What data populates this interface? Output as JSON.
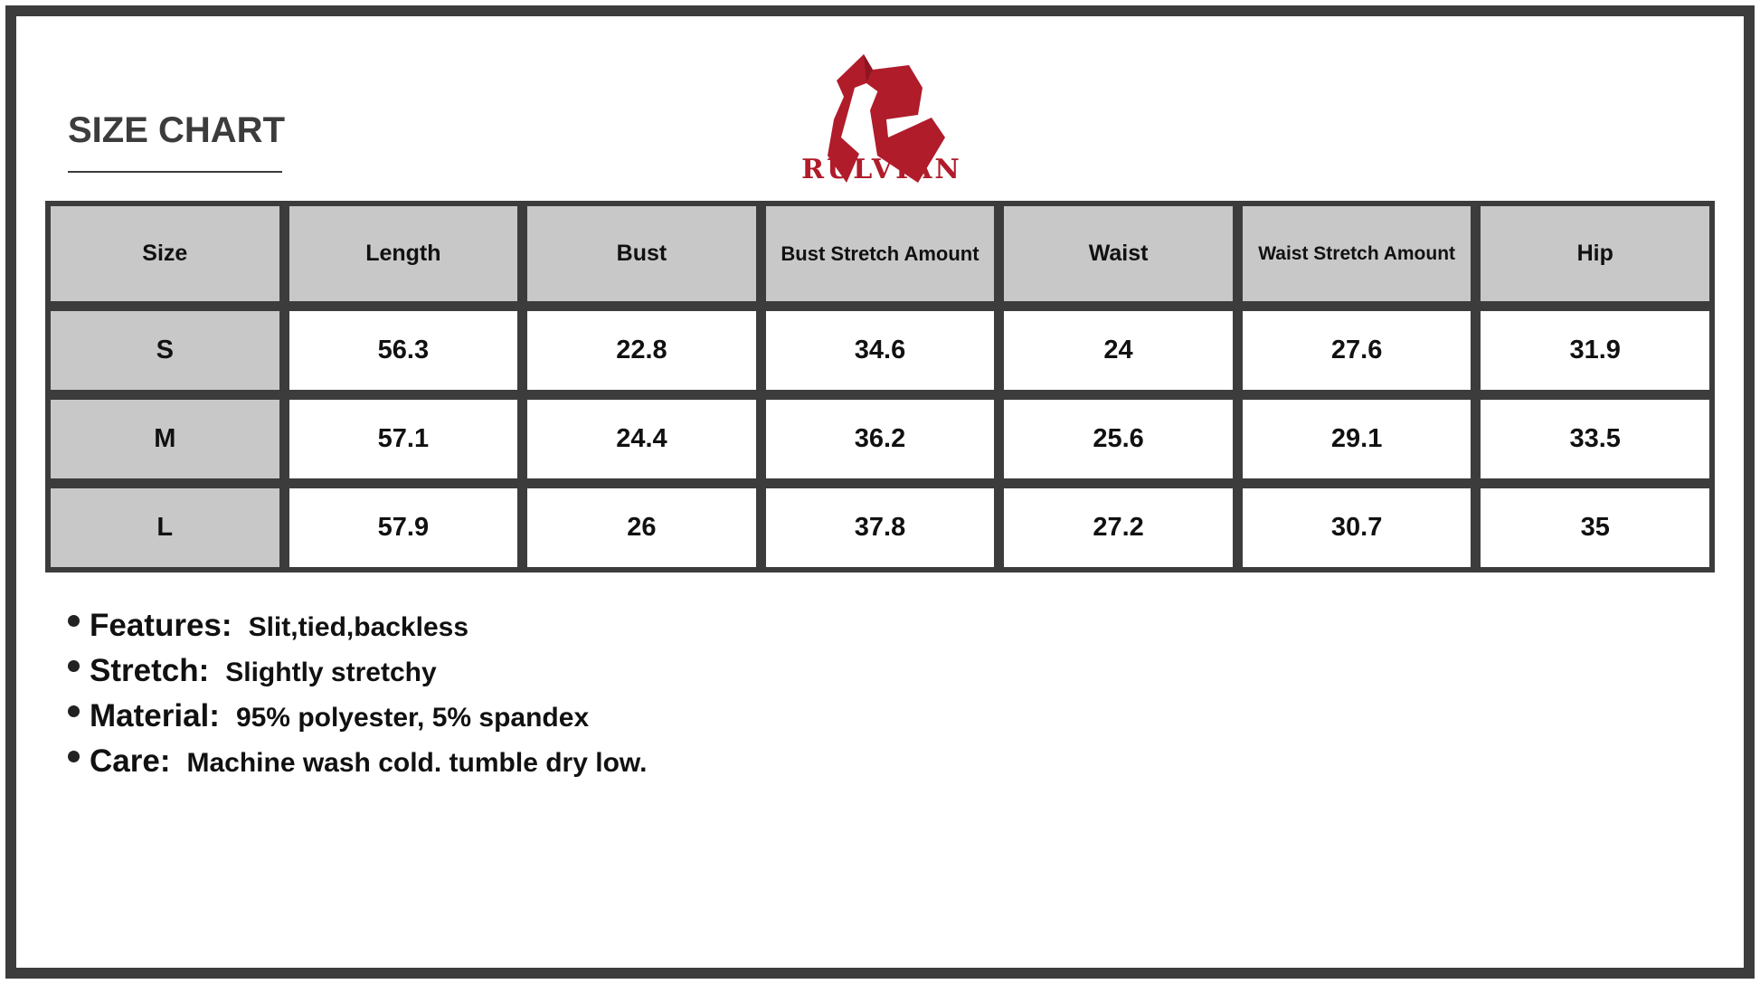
{
  "title": "SIZE CHART",
  "brand": {
    "name": "RULVIAN",
    "color": "#b01c2a"
  },
  "table": {
    "headers": [
      "Size",
      "Length",
      "Bust",
      "Bust Stretch Amount",
      "Waist",
      "Waist Stretch Amount",
      "Hip"
    ],
    "rows": [
      [
        "S",
        "56.3",
        "22.8",
        "34.6",
        "24",
        "27.6",
        "31.9"
      ],
      [
        "M",
        "57.1",
        "24.4",
        "36.2",
        "25.6",
        "29.1",
        "33.5"
      ],
      [
        "L",
        "57.9",
        "26",
        "37.8",
        "27.2",
        "30.7",
        "35"
      ]
    ]
  },
  "notes": [
    {
      "label": "Features:",
      "value": "Slit,tied,backless"
    },
    {
      "label": "Stretch:",
      "value": "Slightly stretchy"
    },
    {
      "label": "Material:",
      "value": "95% polyester, 5% spandex"
    },
    {
      "label": "Care:",
      "value": "Machine wash cold. tumble dry low."
    }
  ]
}
